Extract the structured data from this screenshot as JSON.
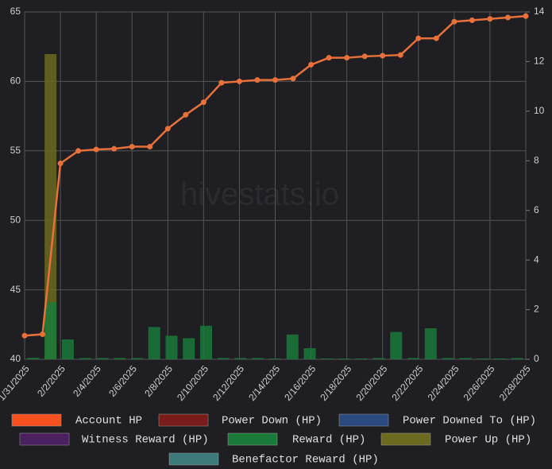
{
  "chart_data": {
    "type": "bar",
    "watermark": "hivestats.io",
    "categories": [
      "1/31/2025",
      null,
      "2/2/2025",
      null,
      "2/4/2025",
      null,
      "2/6/2025",
      null,
      "2/8/2025",
      null,
      "2/10/2025",
      null,
      "2/12/2025",
      null,
      "2/14/2025",
      null,
      "2/16/2025",
      null,
      "2/18/2025",
      null,
      "2/20/2025",
      null,
      "2/22/2025",
      null,
      "2/24/2025",
      null,
      "2/26/2025",
      null,
      "2/28/2025"
    ],
    "ylim": [
      40,
      65
    ],
    "yticks": [
      40,
      45,
      50,
      55,
      60,
      65
    ],
    "y2lim": [
      0,
      14
    ],
    "y2ticks": [
      0,
      2,
      4,
      6,
      8,
      10,
      12,
      14
    ],
    "grid": true,
    "series": [
      {
        "name": "Account HP",
        "type": "line",
        "color": "#f4511e",
        "line_color": "#e8703a",
        "values": [
          41.7,
          41.8,
          54.1,
          55.0,
          55.1,
          55.15,
          55.3,
          55.3,
          56.6,
          57.6,
          58.5,
          59.9,
          60.0,
          60.1,
          60.1,
          60.2,
          61.2,
          61.7,
          61.7,
          61.8,
          61.85,
          61.9,
          63.1,
          63.1,
          64.3,
          64.4,
          64.5,
          64.6,
          64.7
        ]
      },
      {
        "name": "Power Down (HP)",
        "axis": "y2",
        "color": "#7b1c1c",
        "values": [
          0,
          0,
          0,
          0,
          0,
          0,
          0,
          0,
          0,
          0,
          0,
          0,
          0,
          0,
          0,
          0,
          0,
          0,
          0,
          0,
          0,
          0,
          0,
          0,
          0,
          0,
          0,
          0,
          0
        ]
      },
      {
        "name": "Power Downed To (HP)",
        "axis": "y2",
        "color": "#2b4a80",
        "values": [
          0,
          0,
          0,
          0,
          0,
          0,
          0,
          0,
          0,
          0,
          0,
          0,
          0,
          0,
          0,
          0,
          0,
          0,
          0,
          0,
          0,
          0,
          0,
          0,
          0,
          0,
          0,
          0,
          0
        ]
      },
      {
        "name": "Witness Reward (HP)",
        "axis": "y2",
        "color": "#4a2060",
        "values": [
          0,
          0,
          0,
          0,
          0,
          0,
          0,
          0,
          0,
          0,
          0,
          0,
          0,
          0,
          0,
          0,
          0,
          0,
          0,
          0,
          0,
          0,
          0,
          0,
          0,
          0,
          0,
          0,
          0
        ]
      },
      {
        "name": "Power Up (HP)",
        "axis": "y2",
        "color": "#6b6a1e",
        "values": [
          0,
          12.3,
          0,
          0,
          0,
          0,
          0,
          0,
          0,
          0,
          0,
          0,
          0,
          0,
          0,
          0,
          0,
          0,
          0,
          0,
          0,
          0,
          0,
          0,
          0,
          0,
          0,
          0,
          0
        ]
      },
      {
        "name": "Reward (HP)",
        "axis": "y2",
        "color": "#1a7a3a",
        "values": [
          0.06,
          2.3,
          0.8,
          0.05,
          0.05,
          0.05,
          0.05,
          1.3,
          0.95,
          0.85,
          1.35,
          0.05,
          0.05,
          0.05,
          0.03,
          1.0,
          0.45,
          0.03,
          0.03,
          0.03,
          0.05,
          1.1,
          0.05,
          1.25,
          0.05,
          0.05,
          0.03,
          0.03,
          0.05
        ]
      },
      {
        "name": "Benefactor Reward (HP)",
        "axis": "y2",
        "color": "#3d7a7a",
        "values": [
          0,
          0,
          0,
          0,
          0,
          0,
          0,
          0,
          0,
          0,
          0,
          0,
          0,
          0,
          0,
          0,
          0,
          0,
          0,
          0,
          0,
          0,
          0,
          0,
          0,
          0,
          0,
          0,
          0
        ]
      }
    ]
  }
}
